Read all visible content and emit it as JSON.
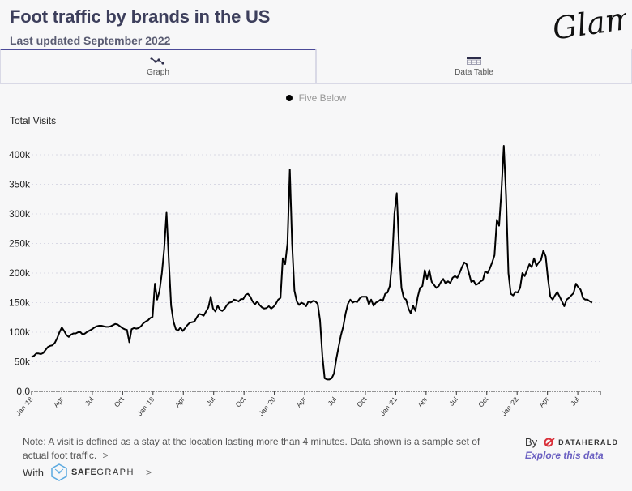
{
  "header": {
    "title": "Foot traffic by brands in the US",
    "subtitle": "Last updated September 2022",
    "logo_text": "Glam"
  },
  "tabs": [
    {
      "label": "Graph",
      "icon": "line-graph-icon",
      "active": true
    },
    {
      "label": "Data Table",
      "icon": "table-icon",
      "active": false
    }
  ],
  "legend": {
    "label": "Five Below",
    "color": "#000000"
  },
  "footer": {
    "note": "Note: A visit is defined as a stay at the location lasting more than 4 minutes. Data shown is a sample set of actual foot traffic.",
    "note_chevron": ">",
    "with_label": "With",
    "safegraph_bold": "SAFE",
    "safegraph_rest": "GRAPH",
    "with_chevron": ">",
    "by_label": "By",
    "dataherald_name": "DATAHERALD",
    "explore_link": "Explore this data"
  },
  "colors": {
    "accent": "#4b4a98",
    "link": "#6a5fc1",
    "line": "#000000",
    "dataherald_red": "#d9303a",
    "safegraph_blue": "#5aa9e0"
  },
  "chart_data": {
    "type": "line",
    "title": "",
    "ylabel": "Total Visits",
    "xlabel": "",
    "ylim": [
      0,
      400000
    ],
    "yticks": [
      0,
      50000,
      100000,
      150000,
      200000,
      250000,
      300000,
      350000,
      400000
    ],
    "ytick_labels": [
      "0.0",
      "50k",
      "100k",
      "150k",
      "200k",
      "250k",
      "300k",
      "350k",
      "400k"
    ],
    "x_start": "2018-01-01",
    "x_unit": "week",
    "xtick_labels": [
      "Jan '18",
      "Apr",
      "Jul",
      "Oct",
      "Jan '19",
      "Apr",
      "Jul",
      "Oct",
      "Jan '20",
      "Apr",
      "Jul",
      "Oct",
      "Jan '21",
      "Apr",
      "Jul",
      "Oct",
      "Jan '22",
      "Apr",
      "Jul"
    ],
    "grid": true,
    "legend_position": "top-center",
    "series": [
      {
        "name": "Five Below",
        "values": [
          58000,
          60000,
          64000,
          64000,
          63000,
          65000,
          70000,
          75000,
          77000,
          78000,
          82000,
          90000,
          100000,
          108000,
          102000,
          95000,
          92000,
          96000,
          98000,
          98000,
          100000,
          100000,
          96000,
          98000,
          101000,
          103000,
          105000,
          108000,
          110000,
          111000,
          111000,
          110000,
          109000,
          109000,
          110000,
          112000,
          114000,
          113000,
          110000,
          107000,
          105000,
          104000,
          83000,
          105000,
          107000,
          106000,
          107000,
          110000,
          115000,
          118000,
          120000,
          124000,
          126000,
          182000,
          155000,
          170000,
          200000,
          240000,
          302000,
          220000,
          145000,
          118000,
          105000,
          103000,
          108000,
          102000,
          107000,
          112000,
          116000,
          117000,
          118000,
          125000,
          131000,
          130000,
          128000,
          135000,
          142000,
          160000,
          140000,
          135000,
          145000,
          138000,
          136000,
          140000,
          146000,
          150000,
          151000,
          155000,
          154000,
          152000,
          156000,
          156000,
          163000,
          165000,
          160000,
          152000,
          147000,
          152000,
          146000,
          142000,
          140000,
          141000,
          144000,
          140000,
          143000,
          148000,
          155000,
          158000,
          225000,
          215000,
          250000,
          375000,
          250000,
          170000,
          152000,
          146000,
          150000,
          148000,
          144000,
          152000,
          150000,
          153000,
          152000,
          148000,
          120000,
          60000,
          22000,
          20000,
          20000,
          22000,
          30000,
          55000,
          75000,
          95000,
          110000,
          132000,
          148000,
          155000,
          150000,
          152000,
          151000,
          157000,
          160000,
          160000,
          160000,
          147000,
          155000,
          145000,
          150000,
          152000,
          155000,
          153000,
          165000,
          167000,
          178000,
          220000,
          300000,
          335000,
          240000,
          175000,
          158000,
          155000,
          140000,
          132000,
          145000,
          136000,
          160000,
          175000,
          178000,
          205000,
          190000,
          205000,
          185000,
          180000,
          175000,
          178000,
          185000,
          190000,
          182000,
          186000,
          183000,
          192000,
          195000,
          192000,
          200000,
          210000,
          218000,
          215000,
          200000,
          185000,
          187000,
          180000,
          182000,
          186000,
          188000,
          203000,
          200000,
          208000,
          218000,
          230000,
          290000,
          280000,
          340000,
          415000,
          330000,
          200000,
          165000,
          162000,
          168000,
          167000,
          175000,
          200000,
          195000,
          205000,
          215000,
          210000,
          225000,
          212000,
          218000,
          222000,
          238000,
          228000,
          190000,
          160000,
          155000,
          162000,
          168000,
          160000,
          152000,
          144000,
          155000,
          158000,
          162000,
          166000,
          182000,
          176000,
          172000,
          158000,
          155000,
          155000,
          152000,
          150000
        ]
      }
    ]
  }
}
